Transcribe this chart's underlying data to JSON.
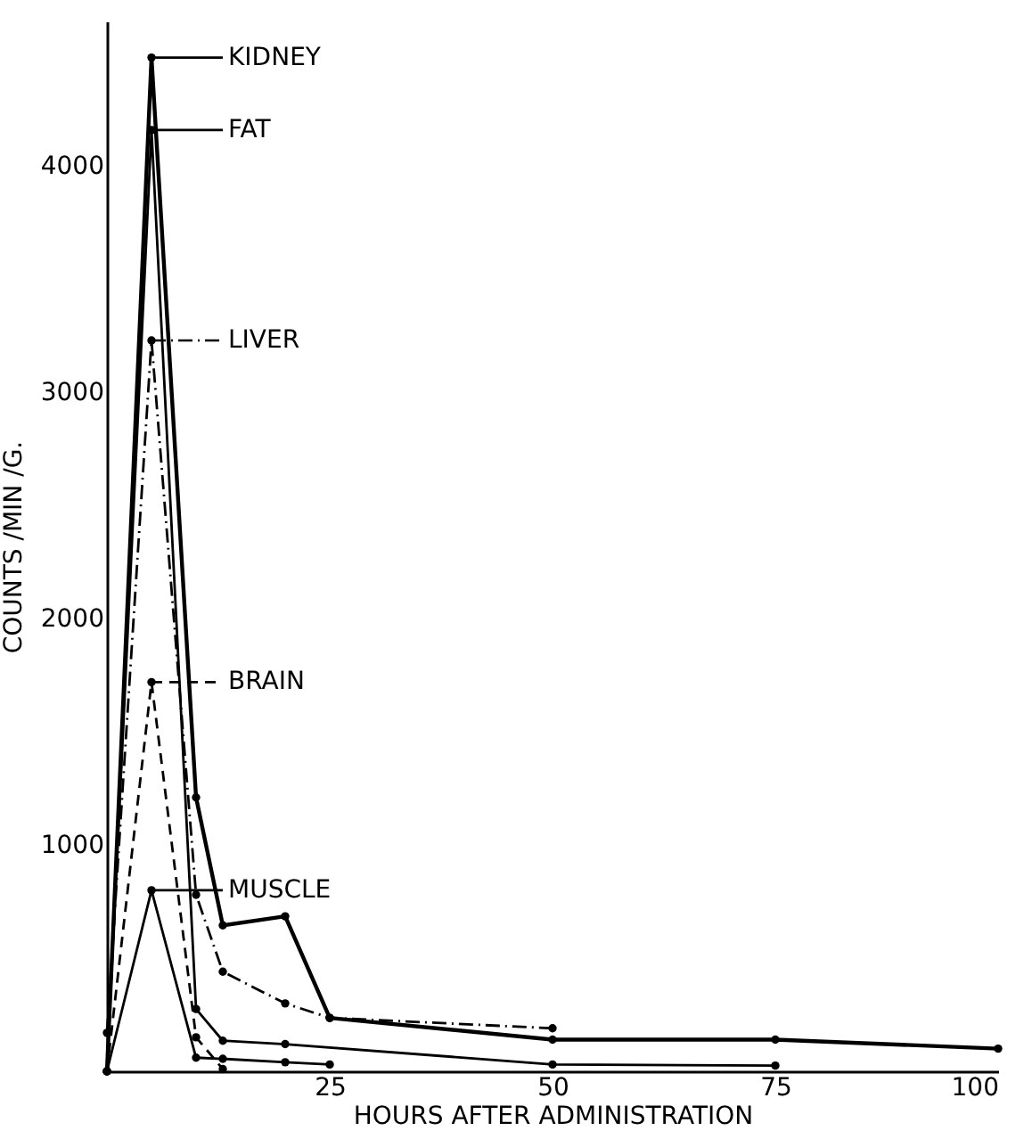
{
  "chart_data": {
    "type": "line",
    "xlabel": "HOURS  AFTER  ADMINISTRATION",
    "ylabel": "COUNTS  /MIN /G.",
    "xlim": [
      0,
      100
    ],
    "xticks": [
      25,
      50,
      75,
      100
    ],
    "ylim": [
      0,
      4640
    ],
    "yticks": [
      1000,
      2000,
      3000,
      4000
    ],
    "grid": false,
    "legend": "top left",
    "marker": "circle",
    "series": [
      {
        "name": "KIDNEY",
        "color": "#000000",
        "line_style": "solid",
        "x": [
          0,
          5,
          10,
          13,
          20,
          25,
          50,
          75,
          100
        ],
        "values": [
          0,
          4480,
          1210,
          645,
          685,
          236,
          140,
          140,
          100
        ]
      },
      {
        "name": "FAT",
        "color": "#000000",
        "line_style": "solid",
        "x": [
          0,
          5,
          10,
          13,
          20,
          50,
          75
        ],
        "values": [
          0,
          4160,
          275,
          135,
          120,
          30,
          25
        ]
      },
      {
        "name": "LIVER",
        "color": "#000000",
        "line_style": "dashdot",
        "x": [
          0,
          5,
          10,
          13,
          20,
          25,
          50
        ],
        "values": [
          170,
          3230,
          780,
          440,
          300,
          236,
          190
        ]
      },
      {
        "name": "BRAIN",
        "color": "#000000",
        "line_style": "dashed",
        "x": [
          0,
          5,
          10,
          13
        ],
        "values": [
          0,
          1720,
          150,
          10
        ]
      },
      {
        "name": "MUSCLE",
        "color": "#000000",
        "line_style": "solid",
        "x": [
          0,
          5,
          10,
          13,
          20,
          25
        ],
        "values": [
          0,
          800,
          60,
          55,
          40,
          30
        ]
      }
    ]
  }
}
